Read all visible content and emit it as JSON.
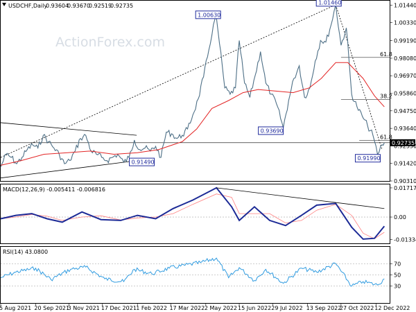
{
  "chart_data": [
    {
      "type": "line",
      "title": "USDCHF,Daily",
      "ohlc": [
        "0.93604",
        "0.93670",
        "0.92519",
        "0.92735"
      ],
      "watermark": "ActionForex.com",
      "y_ticks": [
        "1.01440",
        "1.00330",
        "0.99190",
        "0.98080",
        "0.96970",
        "0.95860",
        "0.94750",
        "0.93640",
        "0.92530",
        "0.91420",
        "0.90310"
      ],
      "ylim": [
        0.9031,
        1.0172
      ],
      "current_price": "0.92735",
      "fib_levels": [
        {
          "label": "61.8",
          "value": 0.9813
        },
        {
          "label": "38.2",
          "value": 0.9546
        },
        {
          "label": "61.8",
          "value": 0.9287
        }
      ],
      "price_labels": [
        {
          "text": "1.01460",
          "date": "2022-10-20",
          "value": 1.0146
        },
        {
          "text": "1.00630",
          "date": "2022-05-16",
          "value": 1.0063
        },
        {
          "text": "0.93690",
          "date": "2022-08-12",
          "value": 0.9369
        },
        {
          "text": "0.91490",
          "date": "2022-01-14",
          "value": 0.9149
        },
        {
          "text": "0.91990",
          "date": "2022-12-14",
          "value": 0.9199
        }
      ],
      "series": [
        {
          "kind": "price",
          "points": [
            [
              "2021-08-05",
              0.912
            ],
            [
              "2021-08-12",
              0.92
            ],
            [
              "2021-08-19",
              0.918
            ],
            [
              "2021-08-26",
              0.914
            ],
            [
              "2021-09-02",
              0.918
            ],
            [
              "2021-09-09",
              0.923
            ],
            [
              "2021-09-16",
              0.926
            ],
            [
              "2021-09-23",
              0.924
            ],
            [
              "2021-09-30",
              0.932
            ],
            [
              "2021-10-07",
              0.928
            ],
            [
              "2021-10-14",
              0.924
            ],
            [
              "2021-10-21",
              0.92
            ],
            [
              "2021-10-28",
              0.914
            ],
            [
              "2021-11-04",
              0.916
            ],
            [
              "2021-11-11",
              0.922
            ],
            [
              "2021-11-18",
              0.93
            ],
            [
              "2021-11-25",
              0.932
            ],
            [
              "2021-12-02",
              0.922
            ],
            [
              "2021-12-09",
              0.92
            ],
            [
              "2021-12-16",
              0.918
            ],
            [
              "2021-12-23",
              0.916
            ],
            [
              "2021-12-30",
              0.918
            ],
            [
              "2022-01-06",
              0.92
            ],
            [
              "2022-01-14",
              0.9149
            ],
            [
              "2022-01-21",
              0.918
            ],
            [
              "2022-01-28",
              0.929
            ],
            [
              "2022-02-04",
              0.923
            ],
            [
              "2022-02-11",
              0.924
            ],
            [
              "2022-02-18",
              0.922
            ],
            [
              "2022-02-25",
              0.925
            ],
            [
              "2022-03-04",
              0.918
            ],
            [
              "2022-03-11",
              0.934
            ],
            [
              "2022-03-18",
              0.933
            ],
            [
              "2022-03-25",
              0.93
            ],
            [
              "2022-04-01",
              0.932
            ],
            [
              "2022-04-08",
              0.936
            ],
            [
              "2022-04-15",
              0.945
            ],
            [
              "2022-04-22",
              0.955
            ],
            [
              "2022-04-29",
              0.969
            ],
            [
              "2022-05-06",
              0.986
            ],
            [
              "2022-05-12",
              1.002
            ],
            [
              "2022-05-16",
              1.0063
            ],
            [
              "2022-05-20",
              0.99
            ],
            [
              "2022-05-27",
              0.962
            ],
            [
              "2022-06-03",
              0.958
            ],
            [
              "2022-06-10",
              0.962
            ],
            [
              "2022-06-15",
              0.992
            ],
            [
              "2022-06-22",
              0.965
            ],
            [
              "2022-06-29",
              0.956
            ],
            [
              "2022-07-06",
              0.97
            ],
            [
              "2022-07-13",
              0.985
            ],
            [
              "2022-07-20",
              0.965
            ],
            [
              "2022-07-27",
              0.958
            ],
            [
              "2022-08-03",
              0.952
            ],
            [
              "2022-08-12",
              0.9369
            ],
            [
              "2022-08-19",
              0.954
            ],
            [
              "2022-08-26",
              0.968
            ],
            [
              "2022-09-02",
              0.976
            ],
            [
              "2022-09-09",
              0.956
            ],
            [
              "2022-09-16",
              0.962
            ],
            [
              "2022-09-23",
              0.979
            ],
            [
              "2022-09-30",
              0.992
            ],
            [
              "2022-10-07",
              0.991
            ],
            [
              "2022-10-14",
              1.002
            ],
            [
              "2022-10-20",
              1.0146
            ],
            [
              "2022-10-27",
              0.989
            ],
            [
              "2022-11-03",
              1.0
            ],
            [
              "2022-11-10",
              0.958
            ],
            [
              "2022-11-17",
              0.95
            ],
            [
              "2022-11-24",
              0.944
            ],
            [
              "2022-12-01",
              0.938
            ],
            [
              "2022-12-08",
              0.932
            ],
            [
              "2022-12-14",
              0.9199
            ],
            [
              "2022-12-20",
              0.926
            ],
            [
              "2022-12-23",
              0.9273
            ]
          ]
        },
        {
          "kind": "moving-average",
          "points": [
            [
              "2021-08-05",
              0.913
            ],
            [
              "2021-09-01",
              0.916
            ],
            [
              "2021-10-01",
              0.92
            ],
            [
              "2021-11-01",
              0.921
            ],
            [
              "2021-12-01",
              0.922
            ],
            [
              "2022-01-01",
              0.92
            ],
            [
              "2022-02-01",
              0.921
            ],
            [
              "2022-03-01",
              0.923
            ],
            [
              "2022-04-01",
              0.928
            ],
            [
              "2022-04-20",
              0.936
            ],
            [
              "2022-05-10",
              0.949
            ],
            [
              "2022-06-01",
              0.954
            ],
            [
              "2022-06-20",
              0.959
            ],
            [
              "2022-07-10",
              0.961
            ],
            [
              "2022-08-01",
              0.96
            ],
            [
              "2022-08-25",
              0.959
            ],
            [
              "2022-09-15",
              0.962
            ],
            [
              "2022-10-01",
              0.968
            ],
            [
              "2022-10-20",
              0.978
            ],
            [
              "2022-11-05",
              0.978
            ],
            [
              "2022-11-25",
              0.968
            ],
            [
              "2022-12-10",
              0.957
            ],
            [
              "2022-12-23",
              0.95
            ]
          ]
        }
      ],
      "trendlines": [
        {
          "from": [
            "2021-08-05",
            0.918
          ],
          "to": [
            "2022-10-20",
            1.0146
          ],
          "style": "dotted"
        },
        {
          "from": [
            "2022-10-20",
            1.0146
          ],
          "to": [
            "2022-12-20",
            0.923
          ],
          "style": "dotted"
        },
        {
          "from": [
            "2021-08-05",
            0.94
          ],
          "to": [
            "2022-01-31",
            0.932
          ],
          "style": "solid"
        },
        {
          "from": [
            "2021-08-05",
            0.905
          ],
          "to": [
            "2022-01-31",
            0.916
          ],
          "style": "solid"
        }
      ],
      "horizontal_line": 0.9273,
      "colors": {
        "price": "#4d6f86",
        "ma": "#e32424",
        "label_border": "#1f2a9c"
      }
    },
    {
      "type": "line",
      "title": "MACD(12,26,9) -0.005411 -0.006816",
      "y_ticks": [
        "0.017174",
        "0.00",
        "-0.01334"
      ],
      "ylim": [
        -0.0155,
        0.0192
      ],
      "series": [
        {
          "kind": "macd",
          "points": [
            [
              "2021-08-05",
              -0.001
            ],
            [
              "2021-08-25",
              0.001
            ],
            [
              "2021-09-15",
              0.002
            ],
            [
              "2021-10-05",
              -0.001
            ],
            [
              "2021-10-25",
              -0.003
            ],
            [
              "2021-11-20",
              0.003
            ],
            [
              "2021-12-15",
              -0.0015
            ],
            [
              "2022-01-10",
              -0.002
            ],
            [
              "2022-02-01",
              0.001
            ],
            [
              "2022-02-25",
              -0.001
            ],
            [
              "2022-03-20",
              0.005
            ],
            [
              "2022-04-15",
              0.01
            ],
            [
              "2022-05-16",
              0.0172
            ],
            [
              "2022-06-05",
              0.006
            ],
            [
              "2022-06-15",
              -0.002
            ],
            [
              "2022-07-05",
              0.006
            ],
            [
              "2022-07-25",
              -0.002
            ],
            [
              "2022-08-15",
              -0.005
            ],
            [
              "2022-09-05",
              0.001
            ],
            [
              "2022-09-25",
              0.007
            ],
            [
              "2022-10-20",
              0.008
            ],
            [
              "2022-11-10",
              -0.006
            ],
            [
              "2022-11-25",
              -0.013
            ],
            [
              "2022-12-10",
              -0.0125
            ],
            [
              "2022-12-23",
              -0.0054
            ]
          ]
        }
      ],
      "trendlines": [
        {
          "from": [
            "2022-05-16",
            0.0172
          ],
          "to": [
            "2022-12-23",
            0.005
          ],
          "style": "solid"
        }
      ],
      "colors": {
        "macd": "#1c2a96",
        "signal": "#ff7f7f"
      }
    },
    {
      "type": "line",
      "title": "RSI(14) 43.0800",
      "y_ticks": [
        "70",
        "50",
        "30"
      ],
      "ylim": [
        0,
        100
      ],
      "series": [
        {
          "kind": "rsi",
          "points": [
            [
              "2021-08-05",
              45
            ],
            [
              "2021-08-25",
              55
            ],
            [
              "2021-09-20",
              62
            ],
            [
              "2021-10-10",
              42
            ],
            [
              "2021-11-05",
              60
            ],
            [
              "2021-11-25",
              64
            ],
            [
              "2021-12-20",
              43
            ],
            [
              "2022-01-14",
              38
            ],
            [
              "2022-01-28",
              60
            ],
            [
              "2022-02-20",
              52
            ],
            [
              "2022-03-15",
              62
            ],
            [
              "2022-04-25",
              72
            ],
            [
              "2022-05-16",
              80
            ],
            [
              "2022-06-01",
              45
            ],
            [
              "2022-06-15",
              63
            ],
            [
              "2022-07-05",
              40
            ],
            [
              "2022-07-20",
              60
            ],
            [
              "2022-08-12",
              35
            ],
            [
              "2022-09-05",
              62
            ],
            [
              "2022-09-25",
              55
            ],
            [
              "2022-10-20",
              70
            ],
            [
              "2022-11-10",
              30
            ],
            [
              "2022-11-25",
              38
            ],
            [
              "2022-12-14",
              32
            ],
            [
              "2022-12-23",
              43
            ]
          ]
        }
      ],
      "colors": {
        "rsi": "#2f9be0"
      }
    }
  ],
  "x_axis": {
    "ticks": [
      {
        "label": "5 Aug 2021",
        "date": "2021-08-05"
      },
      {
        "label": "20 Sep 2021",
        "date": "2021-09-20"
      },
      {
        "label": "3 Nov 2021",
        "date": "2021-11-03"
      },
      {
        "label": "17 Dec 2021",
        "date": "2021-12-17"
      },
      {
        "label": "1 Feb 2022",
        "date": "2022-02-01"
      },
      {
        "label": "17 Mar 2022",
        "date": "2022-03-17"
      },
      {
        "label": "2 May 2022",
        "date": "2022-05-02"
      },
      {
        "label": "15 Jun 2022",
        "date": "2022-06-15"
      },
      {
        "label": "29 Jul 2022",
        "date": "2022-07-29"
      },
      {
        "label": "13 Sep 2022",
        "date": "2022-09-13"
      },
      {
        "label": "27 Oct 2022",
        "date": "2022-10-27"
      },
      {
        "label": "12 Dec 2022",
        "date": "2022-12-12"
      }
    ],
    "range": [
      "2021-08-05",
      "2022-12-30"
    ]
  }
}
